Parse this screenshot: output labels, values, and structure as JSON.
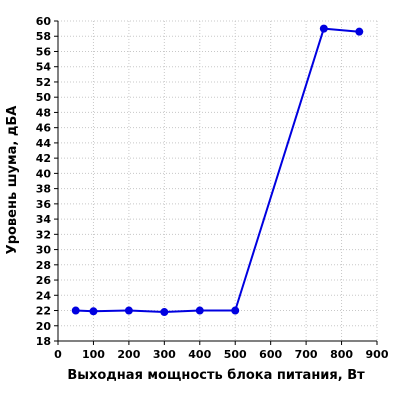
{
  "chart_data": {
    "type": "line",
    "xlabel": "Выходная мощность блока питания, Вт",
    "ylabel": "Уровень шума, дБА",
    "xlim": [
      0,
      900
    ],
    "ylim": [
      18,
      60
    ],
    "xticks": [
      0,
      100,
      200,
      300,
      400,
      500,
      600,
      700,
      800,
      900
    ],
    "yticks": [
      18,
      20,
      22,
      24,
      26,
      28,
      30,
      32,
      34,
      36,
      38,
      40,
      42,
      44,
      46,
      48,
      50,
      52,
      54,
      56,
      58,
      60
    ],
    "grid": true,
    "colors": {
      "series": "#0000e0",
      "grid": "#c8c8c8",
      "axis": "#000000"
    },
    "series": [
      {
        "x": [
          50,
          100,
          200,
          300,
          400,
          500,
          750,
          850
        ],
        "y": [
          22.0,
          21.9,
          22.0,
          21.8,
          22.0,
          22.0,
          59.0,
          58.6
        ]
      }
    ]
  }
}
